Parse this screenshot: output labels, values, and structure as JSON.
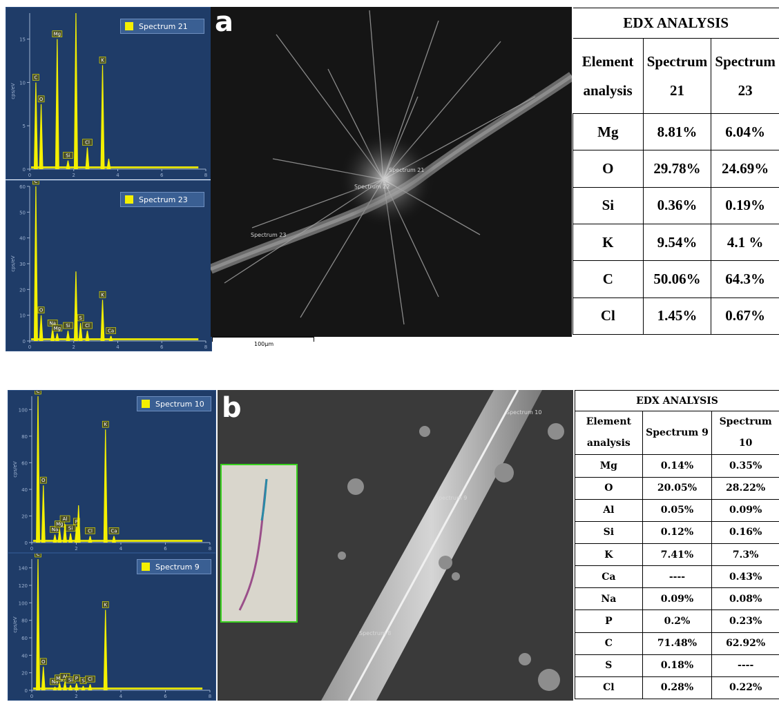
{
  "figure_a": {
    "letter": "a",
    "spectrum_top": {
      "legend": "Spectrum 21",
      "y_ticks": [
        "0",
        "5",
        "10",
        "15"
      ],
      "x_ticks": [
        "0",
        "2",
        "4",
        "6",
        "8"
      ],
      "y_unit": "cps/eV"
    },
    "spectrum_bottom": {
      "legend": "Spectrum 23",
      "y_ticks": [
        "0",
        "10",
        "20",
        "30",
        "40",
        "50",
        "60"
      ],
      "x_ticks": [
        "0",
        "2",
        "4",
        "6",
        "8"
      ],
      "y_unit": "cps/eV"
    },
    "sem_labels": [
      "Spectrum 21",
      "Spectrum 22",
      "Spectrum 23"
    ],
    "scale_bar": "100µm",
    "table": {
      "title": "EDX ANALYSIS",
      "header": [
        "Element analysis",
        "Spectrum 21",
        "Spectrum 23"
      ],
      "rows": [
        [
          "Mg",
          "8.81%",
          "6.04%"
        ],
        [
          "O",
          "29.78%",
          "24.69%"
        ],
        [
          "Si",
          "0.36%",
          "0.19%"
        ],
        [
          "K",
          "9.54%",
          "4.1 %"
        ],
        [
          "C",
          "50.06%",
          "64.3%"
        ],
        [
          "Cl",
          "1.45%",
          "0.67%"
        ]
      ]
    }
  },
  "figure_b": {
    "letter": "b",
    "spectrum_top": {
      "legend": "Spectrum 10",
      "y_ticks": [
        "0",
        "20",
        "40",
        "60",
        "80",
        "100"
      ],
      "x_ticks": [
        "0",
        "2",
        "4",
        "6",
        "8"
      ],
      "y_unit": "cps/eV"
    },
    "spectrum_bottom": {
      "legend": "Spectrum 9",
      "y_ticks": [
        "0",
        "20",
        "40",
        "60",
        "80",
        "100",
        "120",
        "140"
      ],
      "x_ticks": [
        "0",
        "2",
        "4",
        "6",
        "8"
      ],
      "y_unit": "cps/eV"
    },
    "sem_labels": [
      "Spectrum 10",
      "Spectrum 9",
      "Spectrum 8"
    ],
    "table": {
      "title": "EDX ANALYSIS",
      "header": [
        "Element analysis",
        "Spectrum 9",
        "Spectrum 10"
      ],
      "rows": [
        [
          "Mg",
          "0.14%",
          "0.35%"
        ],
        [
          "O",
          "20.05%",
          "28.22%"
        ],
        [
          "Al",
          "0.05%",
          "0.09%"
        ],
        [
          "Si",
          "0.12%",
          "0.16%"
        ],
        [
          "K",
          "7.41%",
          "7.3%"
        ],
        [
          "Ca",
          "----",
          "0.43%"
        ],
        [
          "Na",
          "0.09%",
          "0.08%"
        ],
        [
          "P",
          "0.2%",
          "0.23%"
        ],
        [
          "C",
          "71.48%",
          "62.92%"
        ],
        [
          "S",
          "0.18%",
          "----"
        ],
        [
          "Cl",
          "0.28%",
          "0.22%"
        ]
      ]
    }
  },
  "chart_data": [
    {
      "type": "line",
      "title": "",
      "legend": "Spectrum 21",
      "ylabel": "cps/eV",
      "xlim": [
        0,
        8
      ],
      "ylim": [
        0,
        18
      ],
      "peaks": [
        {
          "label": "C",
          "x": 0.28,
          "y": 10
        },
        {
          "label": "O",
          "x": 0.52,
          "y": 7.5
        },
        {
          "label": "Mg",
          "x": 1.25,
          "y": 15
        },
        {
          "label": "Si",
          "x": 1.74,
          "y": 1
        },
        {
          "label": "",
          "x": 2.1,
          "y": 18
        },
        {
          "label": "Cl",
          "x": 2.62,
          "y": 2.5
        },
        {
          "label": "K",
          "x": 3.31,
          "y": 12
        },
        {
          "label": "",
          "x": 3.59,
          "y": 1.2
        }
      ]
    },
    {
      "type": "line",
      "title": "",
      "legend": "Spectrum 23",
      "ylabel": "cps/eV",
      "xlim": [
        0,
        8
      ],
      "ylim": [
        0,
        60
      ],
      "peaks": [
        {
          "label": "C",
          "x": 0.28,
          "y": 60
        },
        {
          "label": "O",
          "x": 0.52,
          "y": 10
        },
        {
          "label": "Na",
          "x": 1.04,
          "y": 5
        },
        {
          "label": "Mg",
          "x": 1.25,
          "y": 3
        },
        {
          "label": "Si",
          "x": 1.74,
          "y": 4
        },
        {
          "label": "S",
          "x": 2.31,
          "y": 7
        },
        {
          "label": "",
          "x": 2.1,
          "y": 27
        },
        {
          "label": "Cl",
          "x": 2.62,
          "y": 4
        },
        {
          "label": "K",
          "x": 3.31,
          "y": 16
        },
        {
          "label": "Ca",
          "x": 3.69,
          "y": 2
        }
      ]
    },
    {
      "type": "line",
      "title": "",
      "legend": "Spectrum 10",
      "ylabel": "cps/eV",
      "xlim": [
        0,
        8
      ],
      "ylim": [
        0,
        110
      ],
      "peaks": [
        {
          "label": "C",
          "x": 0.28,
          "y": 110
        },
        {
          "label": "O",
          "x": 0.52,
          "y": 43
        },
        {
          "label": "Na",
          "x": 1.04,
          "y": 6
        },
        {
          "label": "Mg",
          "x": 1.25,
          "y": 10
        },
        {
          "label": "Al",
          "x": 1.49,
          "y": 14
        },
        {
          "label": "Si",
          "x": 1.74,
          "y": 7
        },
        {
          "label": "P",
          "x": 2.01,
          "y": 12
        },
        {
          "label": "",
          "x": 2.1,
          "y": 28
        },
        {
          "label": "Cl",
          "x": 2.62,
          "y": 5
        },
        {
          "label": "K",
          "x": 3.31,
          "y": 85
        },
        {
          "label": "Ca",
          "x": 3.69,
          "y": 5
        }
      ]
    },
    {
      "type": "line",
      "title": "",
      "legend": "Spectrum 9",
      "ylabel": "cps/eV",
      "xlim": [
        0,
        8
      ],
      "ylim": [
        0,
        150
      ],
      "peaks": [
        {
          "label": "C",
          "x": 0.28,
          "y": 150
        },
        {
          "label": "O",
          "x": 0.52,
          "y": 27
        },
        {
          "label": "Na",
          "x": 1.04,
          "y": 4
        },
        {
          "label": "Mg",
          "x": 1.25,
          "y": 8
        },
        {
          "label": "Al",
          "x": 1.49,
          "y": 10
        },
        {
          "label": "Si",
          "x": 1.74,
          "y": 6
        },
        {
          "label": "P",
          "x": 2.01,
          "y": 8
        },
        {
          "label": "S",
          "x": 2.31,
          "y": 5
        },
        {
          "label": "Cl",
          "x": 2.62,
          "y": 7
        },
        {
          "label": "K",
          "x": 3.31,
          "y": 92
        }
      ]
    }
  ]
}
